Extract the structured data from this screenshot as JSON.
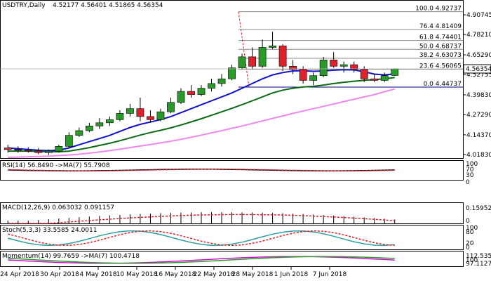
{
  "header": {
    "symbol": "USDTRY,Daily",
    "ohlc": "4.52177 4.56401 4.51865 4.56354"
  },
  "colors": {
    "bull": "#2a9a2a",
    "bear": "#e0202a",
    "ma_blue": "#1010d0",
    "ma_darkgreen": "#0c6a12",
    "ma_pink": "#ee88ee",
    "ma_magenta": "#cc10cc",
    "ma_navy": "#000080",
    "bb_green": "#3aa03a",
    "fib": "#888888",
    "price_tag_bg": "#ffffff"
  },
  "chart_data": {
    "type": "candlestick",
    "ylim": [
      4.0,
      4.975
    ],
    "x_labels": [
      "24 Apr 2018",
      "30 Apr 2018",
      "4 May 2018",
      "10 May 2018",
      "16 May 2018",
      "22 May 2018",
      "28 May 2018",
      "1 Jun 2018",
      "7 Jun 2018"
    ],
    "y_ticks": [
      "4.90745",
      "4.78210",
      "4.65290",
      "4.52755",
      "4.39830",
      "4.27290",
      "4.14370",
      "4.01830"
    ],
    "y_tick_values": [
      4.90745,
      4.7821,
      4.6529,
      4.52755,
      4.3983,
      4.2729,
      4.1437,
      4.0183
    ],
    "current_price": "4.56354",
    "current_price_value": 4.56354,
    "candles": [
      {
        "o": 4.06,
        "h": 4.08,
        "l": 4.03,
        "c": 4.05
      },
      {
        "o": 4.05,
        "h": 4.07,
        "l": 4.03,
        "c": 4.045
      },
      {
        "o": 4.045,
        "h": 4.065,
        "l": 4.03,
        "c": 4.04
      },
      {
        "o": 4.04,
        "h": 4.06,
        "l": 4.02,
        "c": 4.03
      },
      {
        "o": 4.03,
        "h": 4.05,
        "l": 4.015,
        "c": 4.04
      },
      {
        "o": 4.04,
        "h": 4.08,
        "l": 4.03,
        "c": 4.07
      },
      {
        "o": 4.07,
        "h": 4.16,
        "l": 4.06,
        "c": 4.14
      },
      {
        "o": 4.14,
        "h": 4.19,
        "l": 4.13,
        "c": 4.17
      },
      {
        "o": 4.17,
        "h": 4.22,
        "l": 4.16,
        "c": 4.2
      },
      {
        "o": 4.2,
        "h": 4.25,
        "l": 4.18,
        "c": 4.22
      },
      {
        "o": 4.22,
        "h": 4.26,
        "l": 4.2,
        "c": 4.24
      },
      {
        "o": 4.24,
        "h": 4.3,
        "l": 4.23,
        "c": 4.28
      },
      {
        "o": 4.28,
        "h": 4.34,
        "l": 4.26,
        "c": 4.31
      },
      {
        "o": 4.31,
        "h": 4.38,
        "l": 4.23,
        "c": 4.26
      },
      {
        "o": 4.26,
        "h": 4.3,
        "l": 4.22,
        "c": 4.24
      },
      {
        "o": 4.24,
        "h": 4.31,
        "l": 4.23,
        "c": 4.29
      },
      {
        "o": 4.29,
        "h": 4.38,
        "l": 4.28,
        "c": 4.35
      },
      {
        "o": 4.35,
        "h": 4.44,
        "l": 4.34,
        "c": 4.42
      },
      {
        "o": 4.42,
        "h": 4.46,
        "l": 4.38,
        "c": 4.4
      },
      {
        "o": 4.4,
        "h": 4.46,
        "l": 4.39,
        "c": 4.44
      },
      {
        "o": 4.44,
        "h": 4.5,
        "l": 4.42,
        "c": 4.47
      },
      {
        "o": 4.47,
        "h": 4.53,
        "l": 4.45,
        "c": 4.5
      },
      {
        "o": 4.5,
        "h": 4.59,
        "l": 4.49,
        "c": 4.57
      },
      {
        "o": 4.57,
        "h": 4.66,
        "l": 4.56,
        "c": 4.64
      },
      {
        "o": 4.64,
        "h": 4.7,
        "l": 4.56,
        "c": 4.58
      },
      {
        "o": 4.58,
        "h": 4.75,
        "l": 4.57,
        "c": 4.7
      },
      {
        "o": 4.7,
        "h": 4.8,
        "l": 4.69,
        "c": 4.71
      },
      {
        "o": 4.71,
        "h": 4.72,
        "l": 4.55,
        "c": 4.58
      },
      {
        "o": 4.58,
        "h": 4.62,
        "l": 4.53,
        "c": 4.56
      },
      {
        "o": 4.56,
        "h": 4.58,
        "l": 4.47,
        "c": 4.49
      },
      {
        "o": 4.49,
        "h": 4.54,
        "l": 4.46,
        "c": 4.52
      },
      {
        "o": 4.52,
        "h": 4.64,
        "l": 4.51,
        "c": 4.62
      },
      {
        "o": 4.62,
        "h": 4.67,
        "l": 4.57,
        "c": 4.58
      },
      {
        "o": 4.58,
        "h": 4.61,
        "l": 4.54,
        "c": 4.59
      },
      {
        "o": 4.59,
        "h": 4.61,
        "l": 4.54,
        "c": 4.56
      },
      {
        "o": 4.56,
        "h": 4.58,
        "l": 4.48,
        "c": 4.5
      },
      {
        "o": 4.5,
        "h": 4.53,
        "l": 4.48,
        "c": 4.49
      },
      {
        "o": 4.49,
        "h": 4.54,
        "l": 4.48,
        "c": 4.52
      },
      {
        "o": 4.52177,
        "h": 4.56401,
        "l": 4.51865,
        "c": 4.56354
      }
    ],
    "fib_levels": [
      {
        "label": "100.0 4.92737",
        "value": 4.92737
      },
      {
        "label": "76.4 4.81409",
        "value": 4.81409
      },
      {
        "label": "61.8 4.74401",
        "value": 4.74401
      },
      {
        "label": "50.0 4.68737",
        "value": 4.68737
      },
      {
        "label": "38.2 4.63073",
        "value": 4.63073
      },
      {
        "label": "23.6 4.56065",
        "value": 4.56065
      },
      {
        "label": "0.0 4.44737",
        "value": 4.44737
      }
    ],
    "moving_averages": [
      {
        "color_key": "ma_blue",
        "values": [
          4.06,
          4.055,
          4.05,
          4.045,
          4.043,
          4.046,
          4.06,
          4.08,
          4.1,
          4.12,
          4.14,
          4.165,
          4.19,
          4.21,
          4.225,
          4.24,
          4.26,
          4.285,
          4.31,
          4.335,
          4.36,
          4.385,
          4.41,
          4.44,
          4.47,
          4.5,
          4.525,
          4.54,
          4.55,
          4.552,
          4.548,
          4.55,
          4.555,
          4.558,
          4.557,
          4.545,
          4.53,
          4.525,
          4.532
        ]
      },
      {
        "color_key": "ma_darkgreen",
        "values": [
          4.04,
          4.04,
          4.04,
          4.038,
          4.036,
          4.036,
          4.04,
          4.05,
          4.062,
          4.076,
          4.09,
          4.106,
          4.124,
          4.142,
          4.158,
          4.172,
          4.188,
          4.206,
          4.226,
          4.246,
          4.268,
          4.29,
          4.312,
          4.336,
          4.36,
          4.385,
          4.41,
          4.428,
          4.44,
          4.448,
          4.452,
          4.46,
          4.47,
          4.478,
          4.485,
          4.49,
          4.495,
          4.5,
          4.508
        ]
      },
      {
        "color_key": "ma_pink",
        "values": [
          4.0,
          4.002,
          4.004,
          4.006,
          4.008,
          4.011,
          4.015,
          4.02,
          4.027,
          4.035,
          4.043,
          4.052,
          4.062,
          4.072,
          4.082,
          4.092,
          4.103,
          4.115,
          4.128,
          4.142,
          4.156,
          4.17,
          4.185,
          4.2,
          4.216,
          4.232,
          4.248,
          4.264,
          4.28,
          4.295,
          4.31,
          4.325,
          4.34,
          4.355,
          4.37,
          4.385,
          4.4,
          4.418,
          4.435
        ]
      }
    ],
    "rsi": {
      "label": "RSI(14) 56.8490  ->MA(7) 55.7908",
      "ticks": [
        "100",
        "70",
        "30",
        "0"
      ]
    },
    "macd": {
      "label": "MACD(12,26,9) 0.063032 0.091157",
      "ticks": [
        "0.159523",
        "0"
      ]
    },
    "stoch": {
      "label": "Stoch(5,3,3) 33.5585 24.0011",
      "ticks": [
        "100",
        "80",
        "20",
        "0"
      ]
    },
    "momentum": {
      "label": "Momentum(14) 99.7659  ->MA(7) 100.4718",
      "ticks": [
        "112.5356",
        "100",
        "97.11279"
      ]
    }
  }
}
